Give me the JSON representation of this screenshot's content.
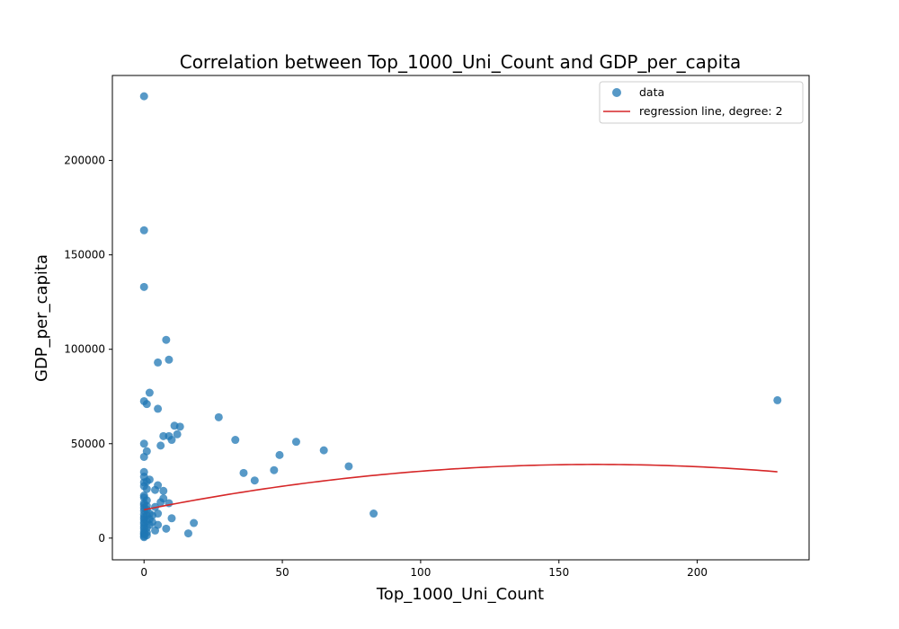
{
  "chart_data": {
    "type": "scatter",
    "title": "Correlation between Top_1000_Uni_Count and GDP_per_capita",
    "xlabel": "Top_1000_Uni_Count",
    "ylabel": "GDP_per_capita",
    "xlim": [
      -11.45,
      240.45
    ],
    "ylim": [
      -11500,
      245000
    ],
    "xticks": [
      0,
      50,
      100,
      150,
      200
    ],
    "yticks": [
      0,
      50000,
      100000,
      150000,
      200000
    ],
    "grid": false,
    "legend_position": "upper-right",
    "colors": {
      "scatter": "#1f77b4",
      "regression": "#d62728"
    },
    "series": [
      {
        "name": "data",
        "kind": "scatter",
        "points": [
          [
            0,
            234000
          ],
          [
            0,
            163000
          ],
          [
            0,
            133000
          ],
          [
            8,
            105000
          ],
          [
            9,
            94500
          ],
          [
            5,
            93000
          ],
          [
            2,
            77000
          ],
          [
            0,
            72500
          ],
          [
            1,
            71000
          ],
          [
            5,
            68500
          ],
          [
            27,
            64000
          ],
          [
            11,
            59500
          ],
          [
            13,
            59000
          ],
          [
            12,
            55000
          ],
          [
            7,
            54000
          ],
          [
            9,
            54000
          ],
          [
            10,
            52000
          ],
          [
            33,
            52000
          ],
          [
            55,
            51000
          ],
          [
            0,
            50000
          ],
          [
            6,
            49000
          ],
          [
            65,
            46500
          ],
          [
            1,
            46000
          ],
          [
            49,
            44000
          ],
          [
            0,
            43000
          ],
          [
            74,
            38000
          ],
          [
            47,
            36000
          ],
          [
            0,
            35000
          ],
          [
            36,
            34500
          ],
          [
            0,
            32500
          ],
          [
            2,
            31000
          ],
          [
            1,
            30000
          ],
          [
            0,
            29500
          ],
          [
            40,
            30500
          ],
          [
            5,
            28000
          ],
          [
            0,
            27500
          ],
          [
            1,
            26000
          ],
          [
            4,
            25500
          ],
          [
            7,
            25000
          ],
          [
            0,
            22500
          ],
          [
            0,
            21500
          ],
          [
            7,
            21000
          ],
          [
            1,
            20000
          ],
          [
            6,
            19000
          ],
          [
            9,
            18500
          ],
          [
            0,
            18500
          ],
          [
            0,
            17500
          ],
          [
            1,
            17000
          ],
          [
            4,
            16500
          ],
          [
            0,
            16000
          ],
          [
            1,
            15000
          ],
          [
            0,
            14500
          ],
          [
            2,
            13000
          ],
          [
            5,
            13000
          ],
          [
            83,
            13000
          ],
          [
            0,
            12500
          ],
          [
            1,
            12000
          ],
          [
            3,
            12000
          ],
          [
            0,
            11000
          ],
          [
            2,
            10000
          ],
          [
            10,
            10500
          ],
          [
            0,
            10000
          ],
          [
            1,
            9000
          ],
          [
            0,
            8500
          ],
          [
            3,
            8500
          ],
          [
            18,
            8000
          ],
          [
            0,
            7500
          ],
          [
            2,
            7000
          ],
          [
            5,
            7000
          ],
          [
            0,
            6000
          ],
          [
            1,
            5500
          ],
          [
            8,
            5000
          ],
          [
            0,
            5000
          ],
          [
            4,
            4000
          ],
          [
            0,
            3500
          ],
          [
            1,
            3000
          ],
          [
            16,
            2500
          ],
          [
            0,
            2500
          ],
          [
            0,
            2000
          ],
          [
            1,
            1500
          ],
          [
            0,
            1000
          ],
          [
            0,
            500
          ],
          [
            229,
            73000
          ]
        ]
      },
      {
        "name": "regression line, degree: 2",
        "kind": "line",
        "coefficients": {
          "a": -0.9,
          "b": 294,
          "c": 15000
        },
        "x_range": [
          0,
          229
        ]
      }
    ]
  }
}
